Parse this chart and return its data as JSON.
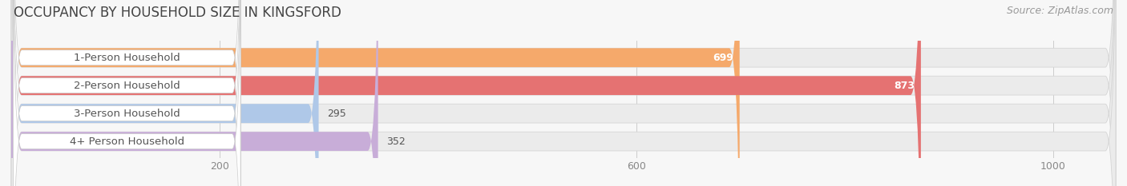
{
  "title": "OCCUPANCY BY HOUSEHOLD SIZE IN KINGSFORD",
  "source": "Source: ZipAtlas.com",
  "categories": [
    "1-Person Household",
    "2-Person Household",
    "3-Person Household",
    "4+ Person Household"
  ],
  "values": [
    699,
    873,
    295,
    352
  ],
  "bar_colors": [
    "#F5A96B",
    "#E57272",
    "#AFC8E8",
    "#C8ADD8"
  ],
  "bar_edge_colors": [
    "#E8904A",
    "#C85050",
    "#88A8C8",
    "#A888B8"
  ],
  "xlim": [
    0,
    1060
  ],
  "xticks": [
    200,
    600,
    1000
  ],
  "background_color": "#F7F7F7",
  "bar_bg_color": "#EBEBEB",
  "title_fontsize": 12,
  "label_fontsize": 9.5,
  "value_fontsize": 9,
  "source_fontsize": 9
}
